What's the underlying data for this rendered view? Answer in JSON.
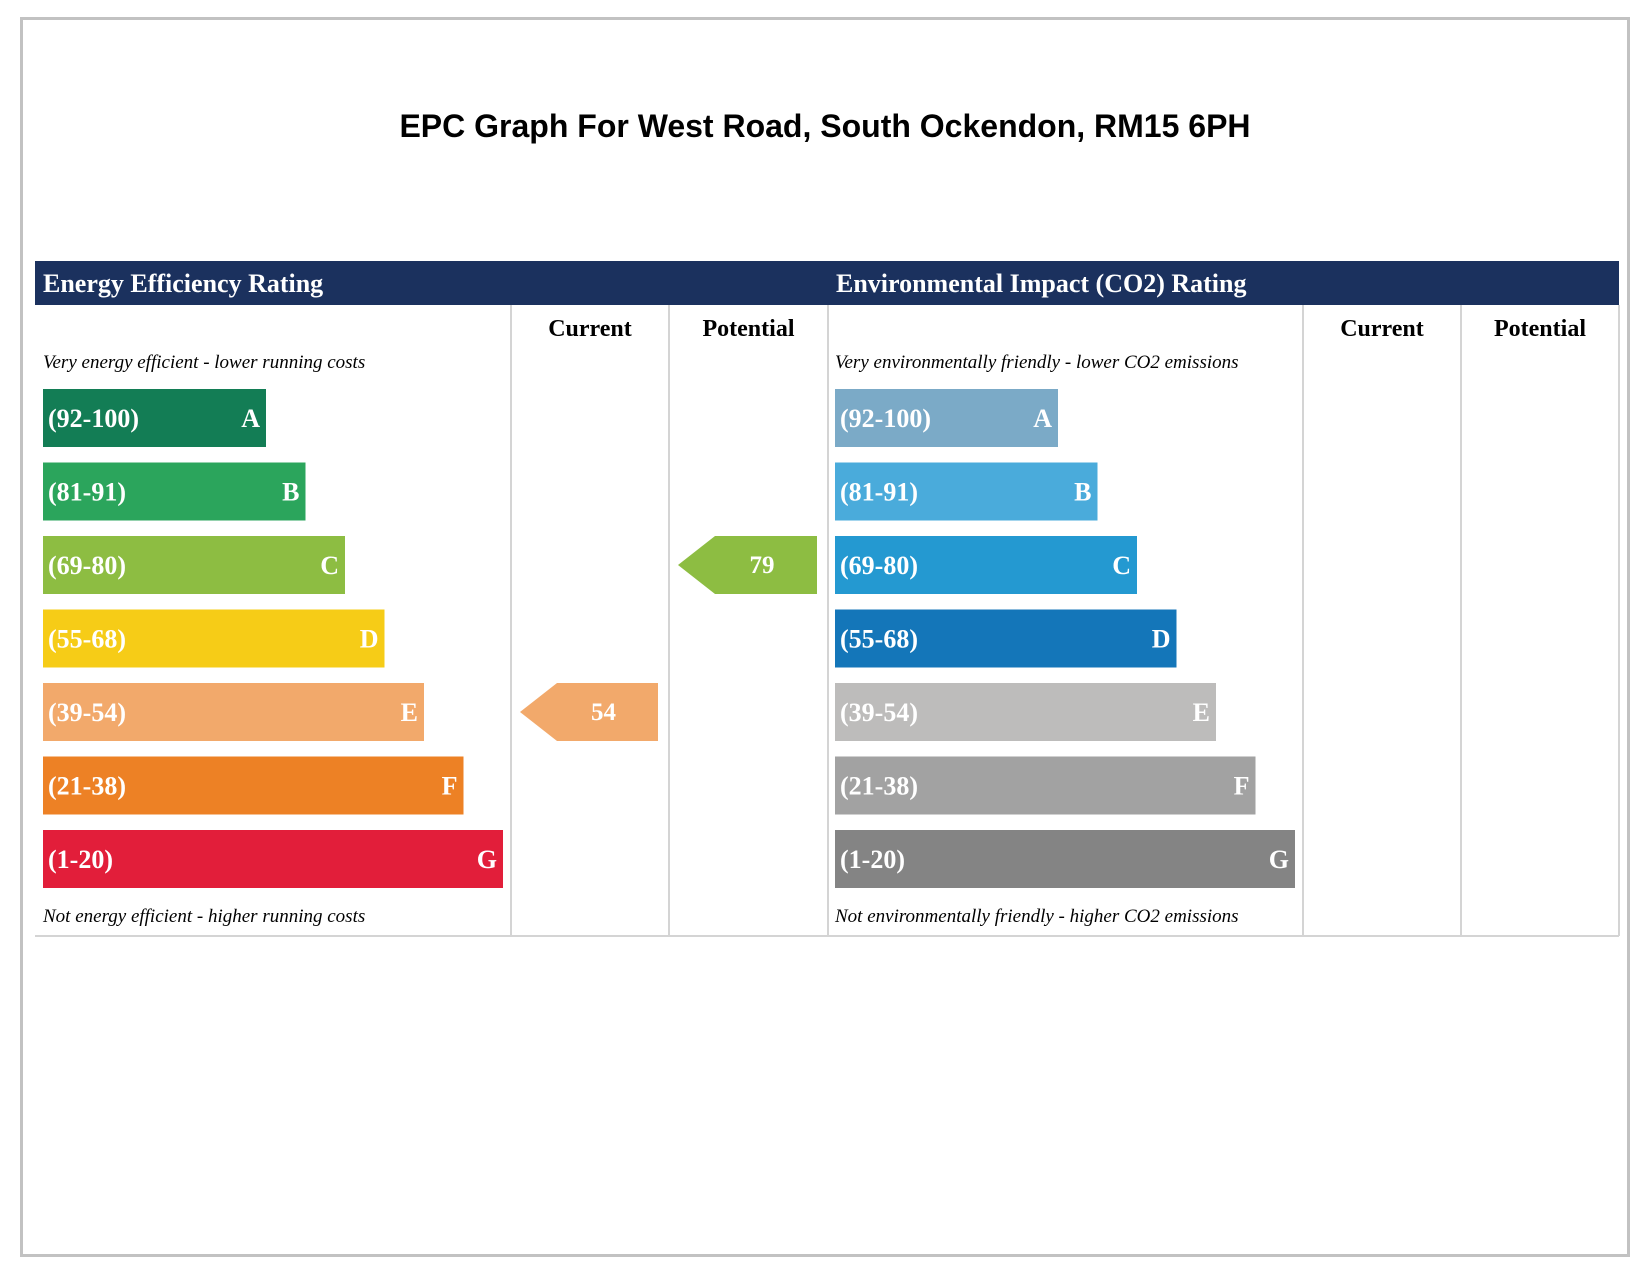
{
  "page": {
    "title": "EPC Graph For West Road, South Ockendon, RM15 6PH"
  },
  "chart_data": [
    {
      "type": "bar",
      "title": "Energy Efficiency Rating",
      "column_labels": [
        "Current",
        "Potential"
      ],
      "top_note": "Very energy efficient - lower running costs",
      "bottom_note": "Not energy efficient - higher running costs",
      "bands": [
        {
          "range": "(92-100)",
          "letter": "A",
          "color": "#137d55"
        },
        {
          "range": "(81-91)",
          "letter": "B",
          "color": "#2ba55c"
        },
        {
          "range": "(69-80)",
          "letter": "C",
          "color": "#8dbd42"
        },
        {
          "range": "(55-68)",
          "letter": "D",
          "color": "#f6cc17"
        },
        {
          "range": "(39-54)",
          "letter": "E",
          "color": "#f2a96b"
        },
        {
          "range": "(21-38)",
          "letter": "F",
          "color": "#ed8125"
        },
        {
          "range": "(1-20)",
          "letter": "G",
          "color": "#e21e3a"
        }
      ],
      "current": {
        "value": 54,
        "band": "E",
        "color": "#f2a96b"
      },
      "potential": {
        "value": 79,
        "band": "C",
        "color": "#8dbd42"
      }
    },
    {
      "type": "bar",
      "title": "Environmental Impact (CO2) Rating",
      "column_labels": [
        "Current",
        "Potential"
      ],
      "top_note": "Very environmentally friendly - lower CO2 emissions",
      "bottom_note": "Not environmentally friendly - higher CO2 emissions",
      "bands": [
        {
          "range": "(92-100)",
          "letter": "A",
          "color": "#7baac7"
        },
        {
          "range": "(81-91)",
          "letter": "B",
          "color": "#4aabdb"
        },
        {
          "range": "(69-80)",
          "letter": "C",
          "color": "#2499d1"
        },
        {
          "range": "(55-68)",
          "letter": "D",
          "color": "#1476b9"
        },
        {
          "range": "(39-54)",
          "letter": "E",
          "color": "#bdbcbb"
        },
        {
          "range": "(21-38)",
          "letter": "F",
          "color": "#a2a2a2"
        },
        {
          "range": "(1-20)",
          "letter": "G",
          "color": "#848484"
        }
      ],
      "current": null,
      "potential": null
    }
  ],
  "colors": {
    "header_bg": "#1b315e",
    "header_text": "#ffffff",
    "border": "#d4d4d4",
    "band_text": "#ffffff"
  }
}
